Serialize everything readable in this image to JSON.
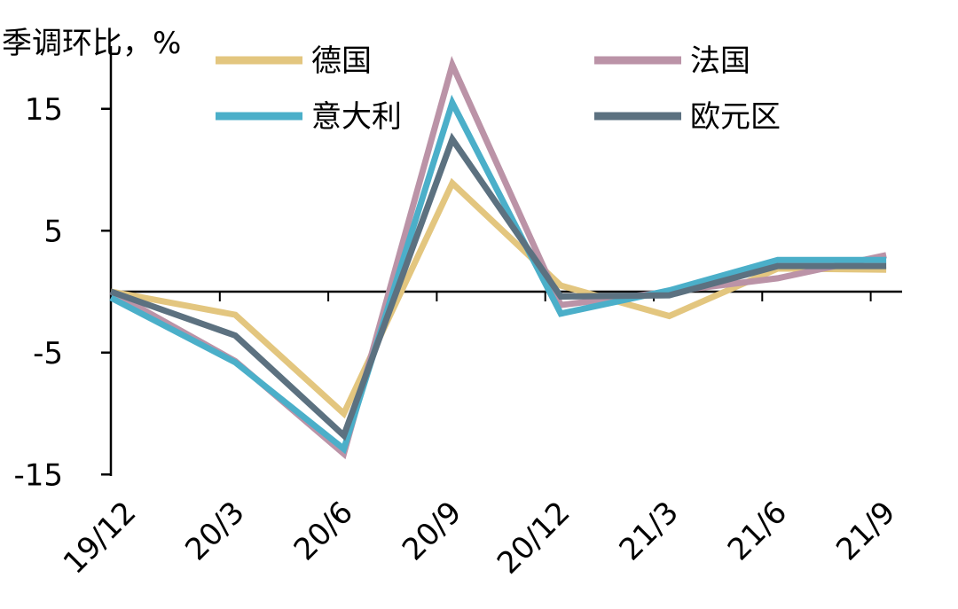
{
  "chart_data": {
    "type": "line",
    "ylabel": "季调环比，%",
    "ylim": [
      -15,
      20
    ],
    "yticks": [
      15,
      5,
      -5,
      -15
    ],
    "x": [
      "19/12",
      "20/3",
      "20/6",
      "20/9",
      "20/12",
      "21/3",
      "21/6",
      "21/9"
    ],
    "series": [
      {
        "name": "德国",
        "color": "#E3C67F",
        "values": [
          0.0,
          -1.9,
          -10.0,
          8.9,
          0.5,
          -2.0,
          1.9,
          1.8
        ]
      },
      {
        "name": "法国",
        "color": "#BB93A7",
        "values": [
          0.0,
          -5.7,
          -13.3,
          18.6,
          -1.1,
          0.0,
          1.1,
          3.0
        ]
      },
      {
        "name": "意大利",
        "color": "#4BAFC9",
        "values": [
          -0.5,
          -5.8,
          -12.9,
          15.5,
          -1.8,
          0.1,
          2.6,
          2.6
        ]
      },
      {
        "name": "欧元区",
        "color": "#5C7180",
        "values": [
          0.0,
          -3.6,
          -11.8,
          12.5,
          -0.4,
          -0.3,
          2.1,
          2.1
        ]
      }
    ],
    "legend": "top"
  }
}
